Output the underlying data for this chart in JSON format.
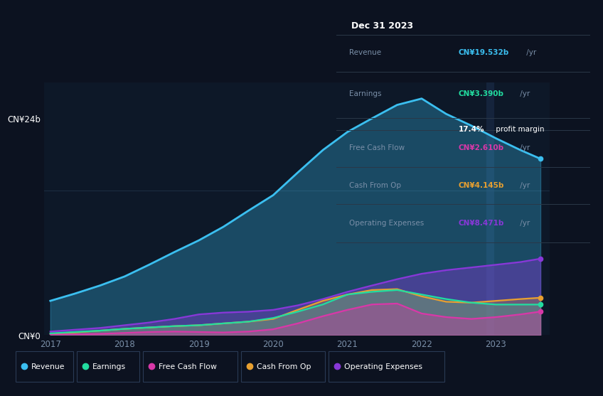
{
  "years": [
    2017.0,
    2017.33,
    2017.67,
    2018.0,
    2018.33,
    2018.67,
    2019.0,
    2019.33,
    2019.67,
    2020.0,
    2020.33,
    2020.67,
    2021.0,
    2021.33,
    2021.67,
    2022.0,
    2022.33,
    2022.67,
    2023.0,
    2023.33,
    2023.6
  ],
  "revenue": [
    3.8,
    4.6,
    5.5,
    6.5,
    7.8,
    9.2,
    10.5,
    12.0,
    13.8,
    15.5,
    18.0,
    20.5,
    22.5,
    24.0,
    25.5,
    26.2,
    24.5,
    23.2,
    21.8,
    20.5,
    19.532
  ],
  "earnings": [
    0.2,
    0.35,
    0.5,
    0.7,
    0.85,
    1.0,
    1.1,
    1.3,
    1.5,
    1.9,
    2.6,
    3.4,
    4.5,
    4.8,
    5.0,
    4.5,
    4.0,
    3.6,
    3.39,
    3.39,
    3.39
  ],
  "free_cf": [
    0.05,
    0.08,
    0.15,
    0.25,
    0.35,
    0.4,
    0.35,
    0.3,
    0.4,
    0.65,
    1.3,
    2.1,
    2.8,
    3.4,
    3.5,
    2.4,
    2.0,
    1.8,
    2.0,
    2.3,
    2.61
  ],
  "cash_op": [
    0.15,
    0.3,
    0.5,
    0.7,
    0.85,
    1.0,
    1.1,
    1.3,
    1.5,
    1.8,
    2.8,
    3.8,
    4.5,
    5.0,
    5.1,
    4.3,
    3.7,
    3.6,
    3.8,
    4.0,
    4.145
  ],
  "op_exp": [
    0.4,
    0.6,
    0.8,
    1.1,
    1.4,
    1.8,
    2.3,
    2.5,
    2.6,
    2.8,
    3.3,
    4.0,
    4.8,
    5.5,
    6.2,
    6.8,
    7.2,
    7.5,
    7.8,
    8.1,
    8.471
  ],
  "colors": {
    "revenue": "#3bbff0",
    "earnings": "#22dda0",
    "free_cf": "#d838a8",
    "cash_op": "#e8a030",
    "op_exp": "#8838d8"
  },
  "bg_color": "#0c1220",
  "chart_bg": "#0d1828",
  "grid_color": "#1c2c40",
  "text_color": "#7a8fa8",
  "white": "#ffffff",
  "ylim": [
    0,
    28
  ],
  "ytick_vals": [
    0,
    24
  ],
  "ytick_labels": [
    "CN¥0",
    "CN¥24b"
  ],
  "xtick_years": [
    2017,
    2018,
    2019,
    2020,
    2021,
    2022,
    2023
  ],
  "table_bg": "#000000",
  "table_title": "Dec 31 2023",
  "legend_items": [
    {
      "label": "Revenue",
      "color": "#3bbff0"
    },
    {
      "label": "Earnings",
      "color": "#22dda0"
    },
    {
      "label": "Free Cash Flow",
      "color": "#d838a8"
    },
    {
      "label": "Cash From Op",
      "color": "#e8a030"
    },
    {
      "label": "Operating Expenses",
      "color": "#8838d8"
    }
  ]
}
